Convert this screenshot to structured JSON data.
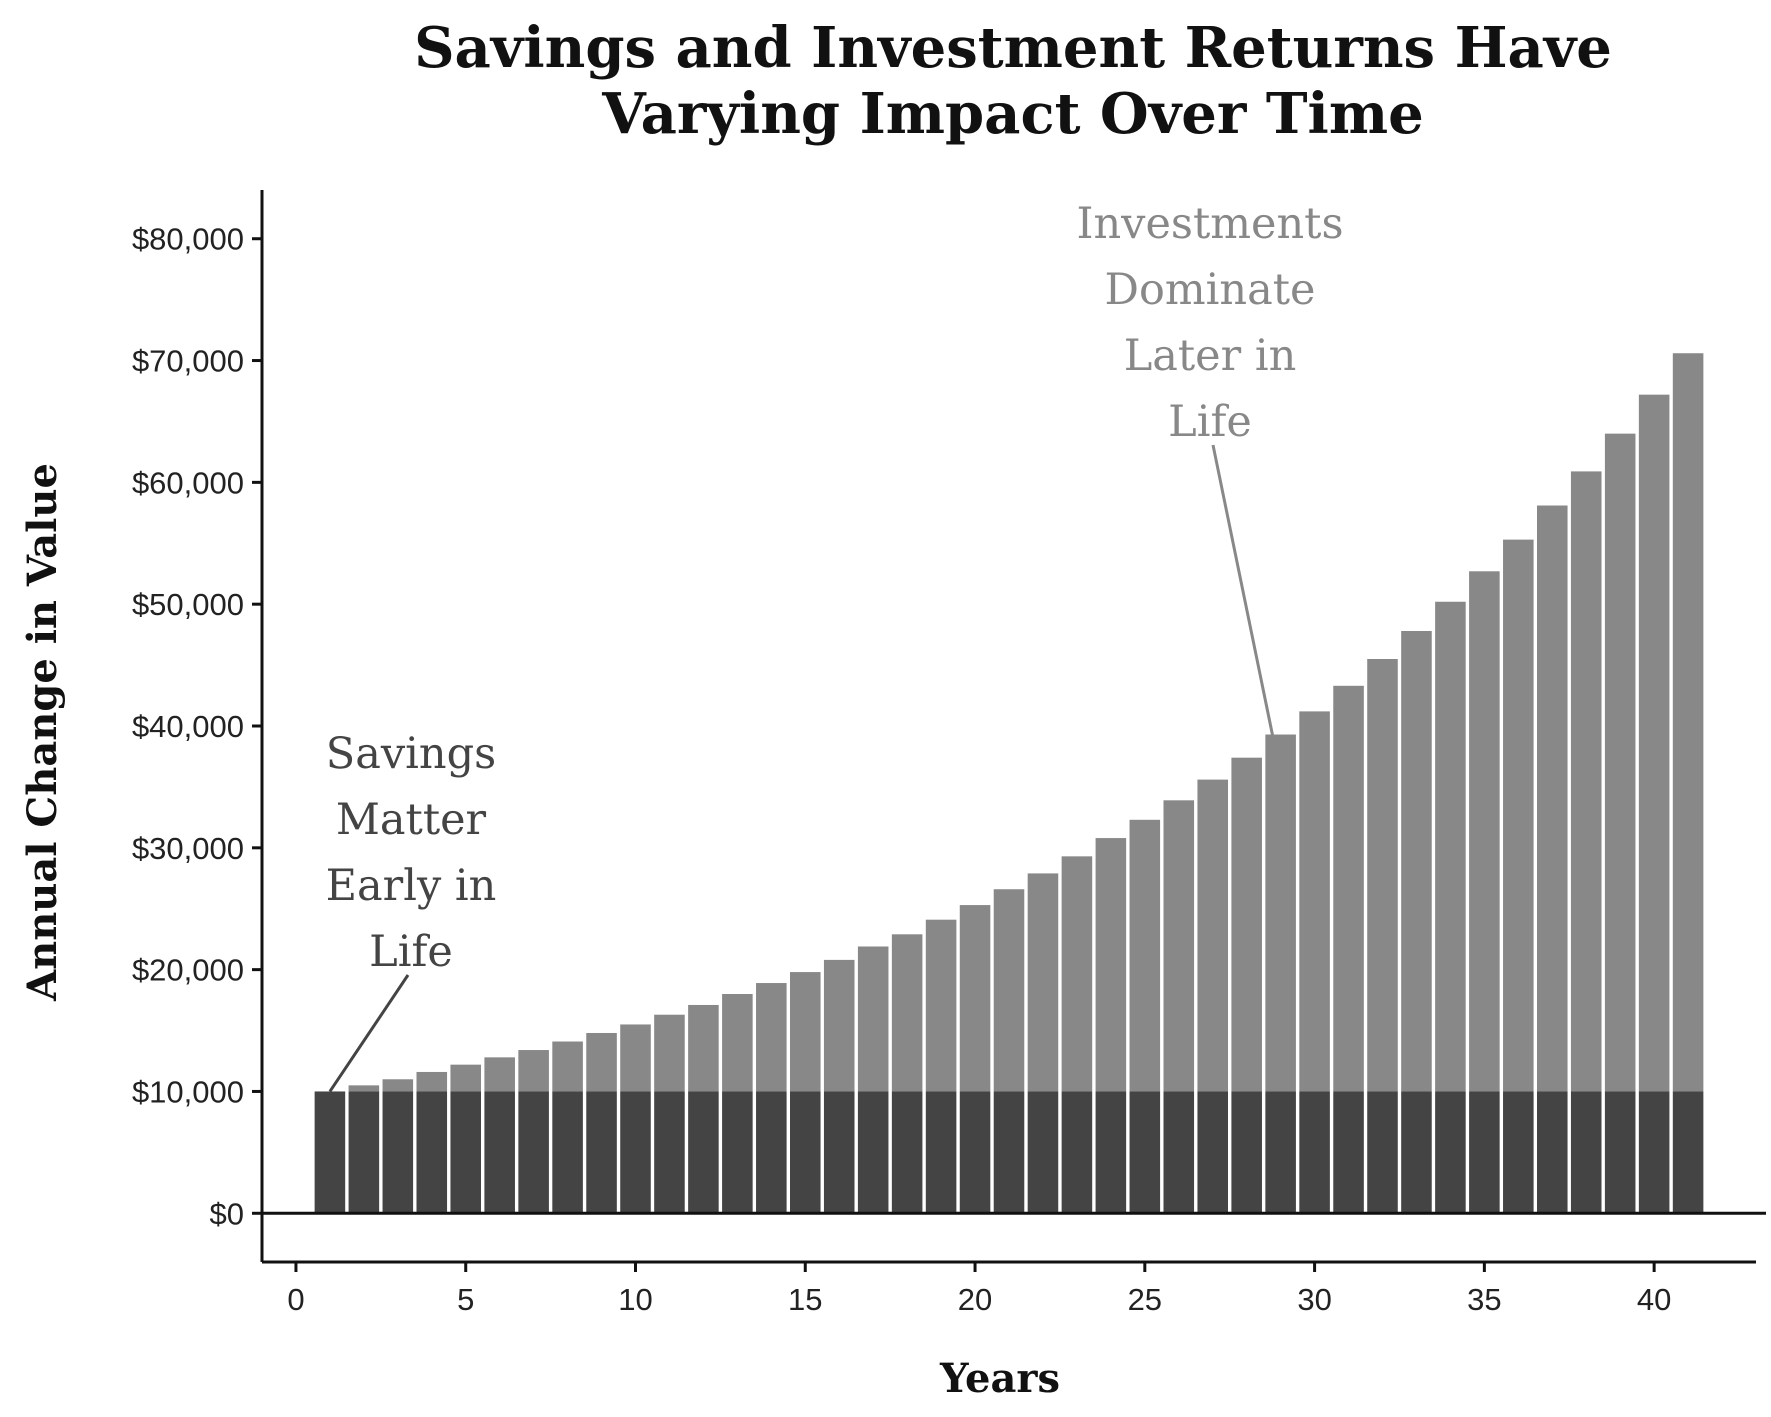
{
  "chart_data": {
    "type": "bar",
    "stacked": true,
    "title": [
      "Savings and Investment Returns Have",
      "Varying Impact Over Time"
    ],
    "xlabel": "Years",
    "ylabel": "Annual Change in Value",
    "xlim": [
      -1,
      43
    ],
    "ylim": [
      -4000,
      84000
    ],
    "x_ticks": [
      0,
      5,
      10,
      15,
      20,
      25,
      30,
      35,
      40
    ],
    "y_ticks": [
      0,
      10000,
      20000,
      30000,
      40000,
      50000,
      60000,
      70000,
      80000
    ],
    "y_tick_labels": [
      "$0",
      "$10,000",
      "$20,000",
      "$30,000",
      "$40,000",
      "$50,000",
      "$60,000",
      "$70,000",
      "$80,000"
    ],
    "grid": false,
    "legend": false,
    "x": [
      1,
      2,
      3,
      4,
      5,
      6,
      7,
      8,
      9,
      10,
      11,
      12,
      13,
      14,
      15,
      16,
      17,
      18,
      19,
      20,
      21,
      22,
      23,
      24,
      25,
      26,
      27,
      28,
      29,
      30,
      31,
      32,
      33,
      34,
      35,
      36,
      37,
      38,
      39,
      40,
      41
    ],
    "series": [
      {
        "name": "",
        "color": "#444444",
        "values": [
          10000,
          10000,
          10000,
          10000,
          10000,
          10000,
          10000,
          10000,
          10000,
          10000,
          10000,
          10000,
          10000,
          10000,
          10000,
          10000,
          10000,
          10000,
          10000,
          10000,
          10000,
          10000,
          10000,
          10000,
          10000,
          10000,
          10000,
          10000,
          10000,
          10000,
          10000,
          10000,
          10000,
          10000,
          10000,
          10000,
          10000,
          10000,
          10000,
          10000,
          10000
        ]
      },
      {
        "name": "",
        "color": "#888888",
        "values": [
          0,
          500,
          1000,
          1600,
          2200,
          2800,
          3400,
          4100,
          4800,
          5500,
          6300,
          7100,
          8000,
          8900,
          9800,
          10800,
          11900,
          12900,
          14100,
          15300,
          16600,
          17900,
          19300,
          20800,
          22300,
          23900,
          25600,
          27400,
          29300,
          31200,
          33300,
          35500,
          37800,
          40200,
          42700,
          45300,
          48100,
          50900,
          54000,
          57200,
          60600
        ]
      }
    ],
    "annotations": [
      {
        "lines": [
          "Savings",
          "Matter",
          "Early in",
          "Life"
        ],
        "color": "#444444",
        "target_x": 1,
        "target_y": 10000
      },
      {
        "lines": [
          "Investments",
          "Dominate",
          "Later in",
          "Life"
        ],
        "color": "#888888",
        "target_x": 29,
        "target_y": 36000
      }
    ]
  }
}
